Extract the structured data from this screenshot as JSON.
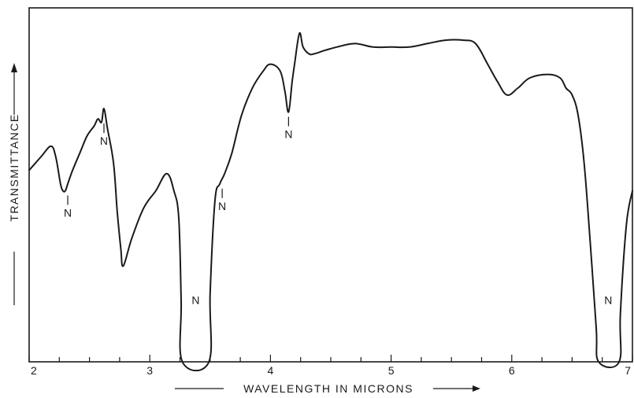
{
  "chart_data": {
    "type": "line",
    "title": "",
    "xlabel": "WAVELENGTH IN MICRONS",
    "ylabel": "TRANSMITTANCE",
    "xlim": [
      2,
      7
    ],
    "ylim": [
      0,
      1
    ],
    "y_tick_labels": "none",
    "grid": false,
    "legend": "none",
    "x_ticks": [
      {
        "value": 2,
        "label": "2"
      },
      {
        "value": 3,
        "label": "3"
      },
      {
        "value": 4,
        "label": "4"
      },
      {
        "value": 5,
        "label": "5"
      },
      {
        "value": 6,
        "label": "6"
      },
      {
        "value": 7,
        "label": "7"
      }
    ],
    "minor_tick_step": 0.25,
    "line_color": "#1a1a1a",
    "series": [
      {
        "x": [
          2.0,
          2.1,
          2.18,
          2.22,
          2.26,
          2.28,
          2.3,
          2.32,
          2.36,
          2.42,
          2.48,
          2.54,
          2.57,
          2.6,
          2.62,
          2.65,
          2.7,
          2.73,
          2.76,
          2.78,
          2.85,
          2.95,
          3.05,
          3.14,
          3.2,
          3.24,
          3.26,
          3.27,
          3.49,
          3.5,
          3.54,
          3.58,
          3.62,
          3.68,
          3.76,
          3.85,
          3.94,
          4.0,
          4.08,
          4.12,
          4.15,
          4.18,
          4.2,
          4.24,
          4.27,
          4.32,
          4.36,
          4.45,
          4.55,
          4.7,
          4.85,
          5.0,
          5.15,
          5.3,
          5.45,
          5.6,
          5.7,
          5.8,
          5.88,
          5.96,
          6.05,
          6.15,
          6.3,
          6.4,
          6.45,
          6.5,
          6.55,
          6.6,
          6.65,
          6.7,
          6.72,
          6.89,
          6.9,
          6.95,
          7.0
        ],
        "y": [
          0.56,
          0.6,
          0.63,
          0.6,
          0.52,
          0.5,
          0.5,
          0.52,
          0.56,
          0.61,
          0.66,
          0.69,
          0.71,
          0.7,
          0.74,
          0.68,
          0.58,
          0.44,
          0.33,
          0.28,
          0.36,
          0.45,
          0.5,
          0.55,
          0.5,
          0.42,
          0.18,
          0.0,
          0.0,
          0.2,
          0.47,
          0.52,
          0.55,
          0.61,
          0.72,
          0.8,
          0.85,
          0.87,
          0.85,
          0.79,
          0.73,
          0.82,
          0.87,
          0.96,
          0.92,
          0.9,
          0.9,
          0.91,
          0.92,
          0.93,
          0.92,
          0.92,
          0.92,
          0.93,
          0.94,
          0.94,
          0.93,
          0.87,
          0.82,
          0.78,
          0.8,
          0.83,
          0.84,
          0.83,
          0.8,
          0.78,
          0.72,
          0.58,
          0.35,
          0.1,
          0.0,
          0.0,
          0.14,
          0.4,
          0.5
        ]
      }
    ],
    "annotations": [
      {
        "text": "N",
        "x": 2.32,
        "y": 0.5,
        "style": "below-marker"
      },
      {
        "text": "N",
        "x": 2.62,
        "y": 0.71,
        "style": "below-marker"
      },
      {
        "text": "N",
        "x": 3.6,
        "y": 0.52,
        "style": "below-marker"
      },
      {
        "text": "N",
        "x": 4.15,
        "y": 0.73,
        "style": "below-marker"
      },
      {
        "text": "N",
        "x": 3.38,
        "y": 0.18,
        "style": "label"
      },
      {
        "text": "N",
        "x": 6.8,
        "y": 0.18,
        "style": "label"
      }
    ]
  }
}
